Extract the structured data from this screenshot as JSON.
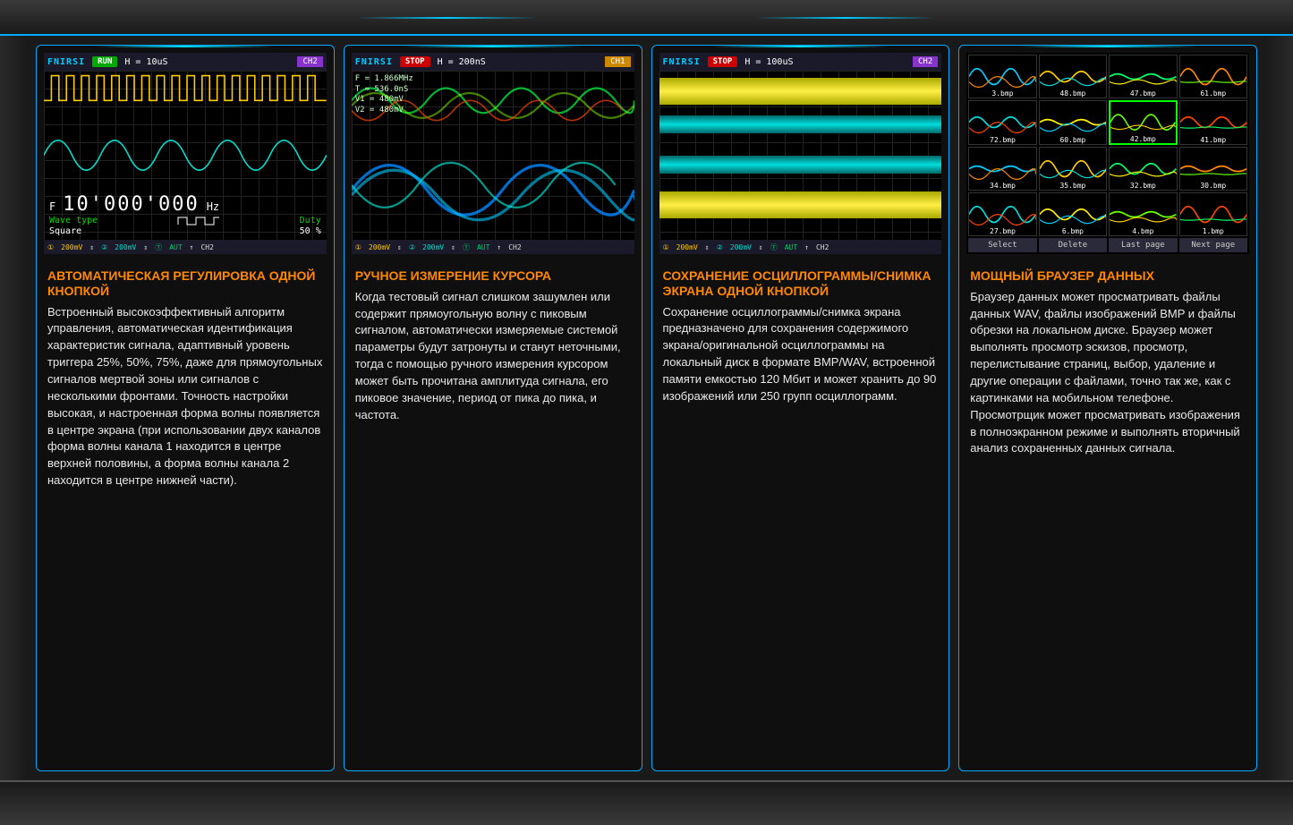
{
  "colors": {
    "accent": "#00aaff",
    "title": "#ff8800",
    "ch1": "#ffcc00",
    "ch2": "#00ddcc",
    "run": "#00aa00",
    "stop": "#cc0000",
    "grid": "#222222"
  },
  "cards": [
    {
      "title": "АВТОМАТИЧЕСКАЯ РЕГУЛИРОВКА ОДНОЙ КНОПКОЙ",
      "text": "Встроенный высокоэффективный алгоритм управления, автоматическая идентификация характеристик сигнала, адаптивный уровень триггера 25%, 50%, 75%, даже для прямоугольных сигналов мертвой зоны или сигналов с несколькими фронтами. Точность настройки высокая, и настроенная форма волны появляется в центре экрана (при использовании двух каналов форма волны канала 1 находится в центре верхней половины, а форма волны канала 2 находится в центре нижней части).",
      "scope": {
        "brand": "FNIRSI",
        "status": "RUN",
        "timebase": "H = 10uS",
        "ch_badge": "CH2",
        "freq_label": "F",
        "freq_value": "10'000'000",
        "freq_unit": "Hz",
        "wave_type_label": "Wave type",
        "wave_type": "Square",
        "duty_label": "Duty",
        "duty_value": "50 %",
        "bottom": {
          "v1": "200mV",
          "v2": "200mV",
          "trig": "AUT",
          "edge": "↑",
          "ch": "CH2"
        }
      }
    },
    {
      "title": "РУЧНОЕ ИЗМЕРЕНИЕ КУРСОРА",
      "text": "Когда тестовый сигнал слишком зашумлен или содержит прямоугольную волну с пиковым сигналом, автоматически измеряемые системой параметры будут затронуты и станут неточными, тогда с помощью ручного измерения курсором может быть прочитана амплитуда сигнала, его пиковое значение, период от пика до пика, и частота.",
      "scope": {
        "brand": "FNIRSI",
        "status": "STOP",
        "timebase": "H = 200nS",
        "ch_badge": "CH1",
        "meas": [
          "F = 1.866MHz",
          "T = 536.0nS",
          "V1 = 480mV",
          "V2 = 480mV"
        ],
        "bottom": {
          "v1": "200mV",
          "v2": "200mV",
          "trig": "AUT",
          "edge": "↑",
          "ch": "CH2"
        }
      }
    },
    {
      "title": "СОХРАНЕНИЕ ОСЦИЛЛОГРАММЫ/СНИМКА ЭКРАНА ОДНОЙ КНОПКОЙ",
      "text": "Сохранение осциллограммы/снимка экрана предназначено для сохранения содержимого экрана/оригинальной осциллограммы на локальный диск в формате BMP/WAV, встроенной памяти емкостью 120 Мбит и может хранить до 90 изображений или 250 групп осциллограмм.",
      "scope": {
        "brand": "FNIRSI",
        "status": "STOP",
        "timebase": "H = 100uS",
        "ch_badge": "CH2",
        "bottom": {
          "v1": "200mV",
          "v2": "200mV",
          "trig": "AUT",
          "edge": "↑",
          "ch": "CH2"
        }
      }
    },
    {
      "title": "МОЩНЫЙ БРАУЗЕР ДАННЫХ",
      "text": "Браузер данных может просматривать файлы данных WAV, файлы изображений BMP и файлы обрезки на локальном диске. Браузер может выполнять просмотр эскизов, просмотр, перелистывание страниц, выбор, удаление и другие операции с файлами, точно так же, как с картинками на мобильном телефоне. Просмотрщик может просматривать изображения в полноэкранном режиме и выполнять вторичный анализ сохраненных данных сигнала.",
      "browser": {
        "thumbs": [
          "3.bmp",
          "48.bmp",
          "47.bmp",
          "61.bmp",
          "72.bmp",
          "60.bmp",
          "42.bmp",
          "41.bmp",
          "34.bmp",
          "35.bmp",
          "32.bmp",
          "30.bmp",
          "27.bmp",
          "6.bmp",
          "4.bmp",
          "1.bmp"
        ],
        "selected_index": 6,
        "buttons": [
          "Select",
          "Delete",
          "Last page",
          "Next page"
        ]
      }
    }
  ]
}
